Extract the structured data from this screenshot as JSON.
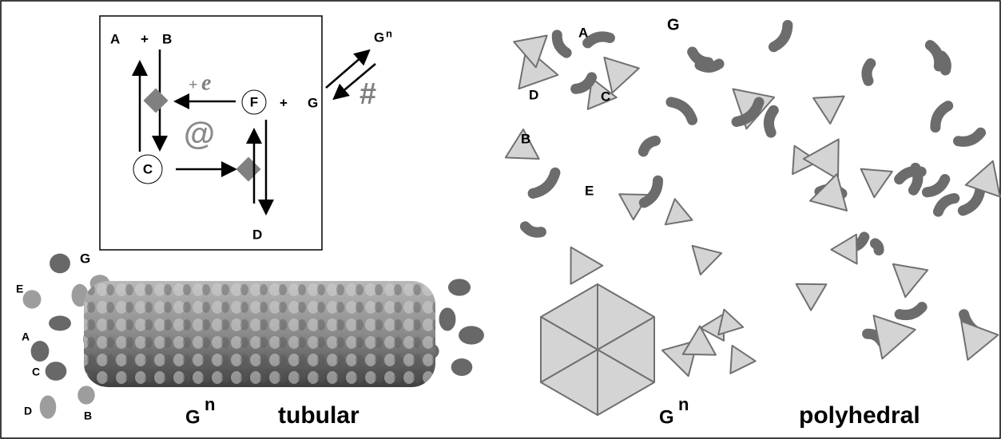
{
  "scheme": {
    "a": "A",
    "plus1": "+",
    "b": "B",
    "gn": "G",
    "gn_sup": "n",
    "plus_e": "+",
    "e": "e",
    "at": "@",
    "hash": "#",
    "f": "F",
    "plus2": "+",
    "g": "G",
    "c": "C",
    "d": "D"
  },
  "tubular": {
    "g": "G",
    "e": "E",
    "a": "A",
    "c": "C",
    "d": "D",
    "b": "B",
    "assembly": "G",
    "assembly_sup": "n",
    "caption": "tubular"
  },
  "polyhedral": {
    "a": "A",
    "g": "G",
    "d": "D",
    "c": "C",
    "b": "B",
    "e": "E",
    "assembly": "G",
    "assembly_sup": "n",
    "caption": "polyhedral"
  }
}
